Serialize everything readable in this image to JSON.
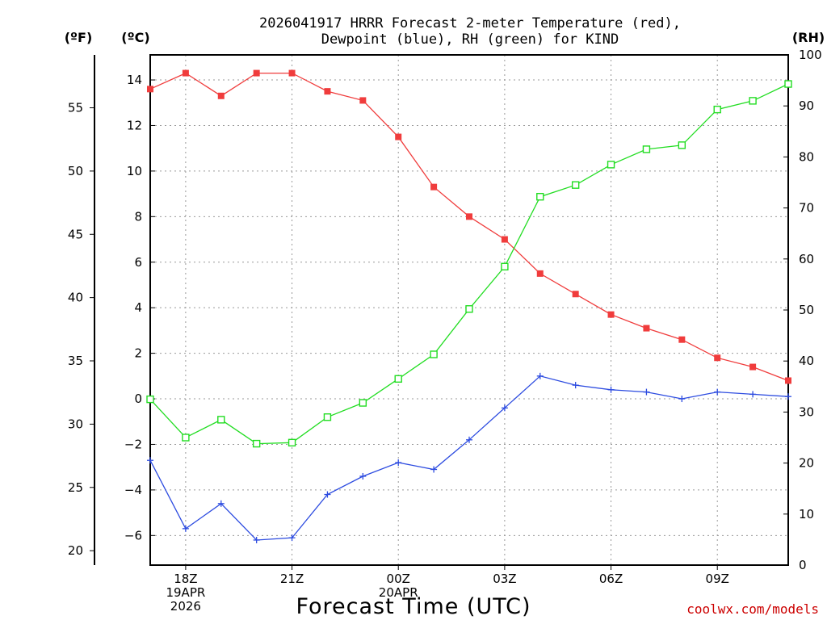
{
  "chart_data": {
    "type": "line",
    "title": "2026041917 HRRR Forecast 2-meter Temperature (red),",
    "subtitle": "Dewpoint (blue), RH (green) for KIND",
    "xlabel": "Forecast Time (UTC)",
    "credit": "coolwx.com/models",
    "units": {
      "fahrenheit": "(ºF)",
      "celsius": "(ºC)",
      "rh": "(RH)"
    },
    "hours": [
      17,
      18,
      19,
      20,
      21,
      22,
      23,
      24,
      25,
      26,
      27,
      28,
      29,
      30,
      31,
      32,
      33,
      34,
      35
    ],
    "xlim": [
      17,
      35
    ],
    "x_ticks": [
      {
        "hour": 18,
        "lines": [
          "18Z",
          "19APR",
          "2026"
        ]
      },
      {
        "hour": 21,
        "lines": [
          "21Z"
        ]
      },
      {
        "hour": 24,
        "lines": [
          "00Z",
          "20APR"
        ]
      },
      {
        "hour": 27,
        "lines": [
          "03Z"
        ]
      },
      {
        "hour": 30,
        "lines": [
          "06Z"
        ]
      },
      {
        "hour": 33,
        "lines": [
          "09Z"
        ]
      }
    ],
    "celsius_axis": {
      "ylim": [
        -7.3,
        15.1
      ],
      "ticks": [
        -6,
        -4,
        -2,
        0,
        2,
        4,
        6,
        8,
        10,
        12,
        14
      ],
      "tick_labels": [
        "−6",
        "−4",
        "−2",
        "0",
        "2",
        "4",
        "6",
        "8",
        "10",
        "12",
        "14"
      ]
    },
    "fahrenheit_axis": {
      "ticks": [
        20,
        25,
        30,
        35,
        40,
        45,
        50,
        55
      ],
      "tick_labels": [
        "20",
        "25",
        "30",
        "35",
        "40",
        "45",
        "50",
        "55"
      ]
    },
    "rh_axis": {
      "ylim": [
        0,
        100
      ],
      "ticks": [
        0,
        10,
        20,
        30,
        40,
        50,
        60,
        70,
        80,
        90,
        100
      ],
      "tick_labels": [
        "0",
        "10",
        "20",
        "30",
        "40",
        "50",
        "60",
        "70",
        "80",
        "90",
        "100"
      ]
    },
    "series": [
      {
        "name": "Temperature",
        "axis": "celsius",
        "color": "#f03c3c",
        "marker": "filled-square",
        "values": [
          13.6,
          14.3,
          13.3,
          14.3,
          14.3,
          13.5,
          13.1,
          11.5,
          9.3,
          8.0,
          7.0,
          5.5,
          4.6,
          3.7,
          3.1,
          2.6,
          1.8,
          1.4,
          0.8
        ]
      },
      {
        "name": "Dewpoint",
        "axis": "celsius",
        "color": "#2c4be0",
        "marker": "plus",
        "values": [
          -2.7,
          -5.7,
          -4.6,
          -6.2,
          -6.1,
          -4.2,
          -3.4,
          -2.8,
          -3.1,
          -1.8,
          -0.4,
          1.0,
          0.6,
          0.4,
          0.3,
          0.0,
          0.3,
          0.2,
          0.1
        ]
      },
      {
        "name": "RH",
        "axis": "rh",
        "color": "#22dd22",
        "marker": "open-square",
        "values": [
          32.5,
          25.0,
          28.5,
          23.8,
          24.0,
          29.0,
          31.8,
          36.5,
          41.3,
          50.2,
          58.5,
          72.2,
          74.5,
          78.5,
          81.5,
          82.3,
          89.3,
          91.0,
          94.3
        ]
      }
    ]
  }
}
